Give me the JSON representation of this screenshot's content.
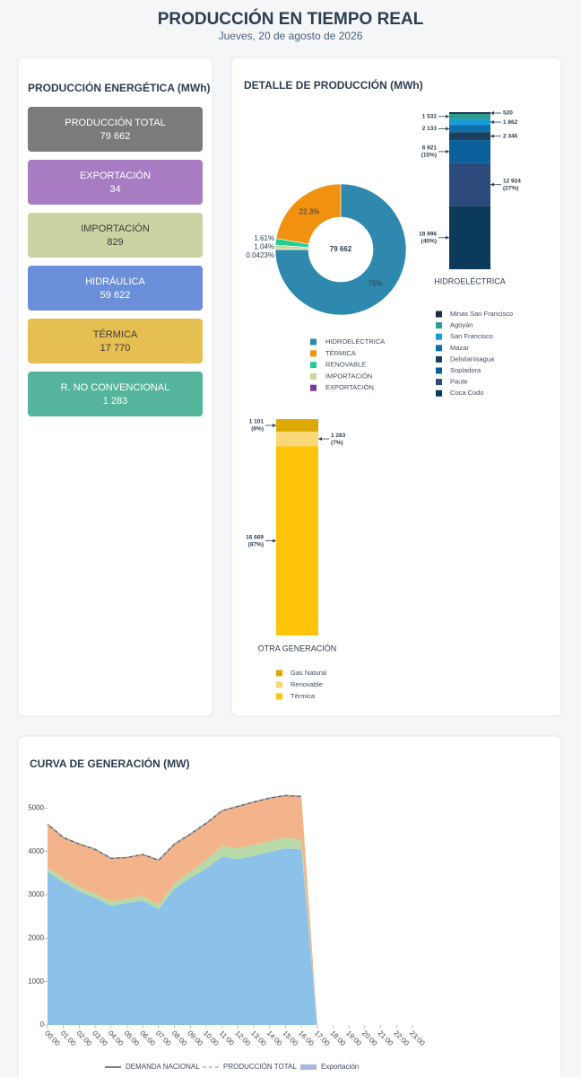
{
  "header": {
    "title": "PRODUCCIÓN EN TIEMPO REAL",
    "subtitle": "Jueves, 20 de agosto de 2026"
  },
  "summary": {
    "title": "PRODUCCIÓN ENERGÉTICA (MWh)",
    "cards": [
      {
        "label": "PRODUCCIÓN TOTAL",
        "value": "79 662",
        "color": "#7b7b7b",
        "text_color": "#ffffff"
      },
      {
        "label": "EXPORTACIÓN",
        "value": "34",
        "color": "#a87cc2",
        "text_color": "#ffffff"
      },
      {
        "label": "IMPORTACIÓN",
        "value": "829",
        "color": "#cad3a1",
        "text_color": "#3b3b3b"
      },
      {
        "label": "HIDRÁULICA",
        "value": "59 622",
        "color": "#6c8fd9",
        "text_color": "#ffffff"
      },
      {
        "label": "TÉRMICA",
        "value": "17 770",
        "color": "#e5bf52",
        "text_color": "#3b3b3b"
      },
      {
        "label": "R. NO CONVENCIONAL",
        "value": "1 283",
        "color": "#55b59c",
        "text_color": "#ffffff"
      }
    ]
  },
  "detail": {
    "title": "DETALLE DE PRODUCCIÓN (MWh)"
  },
  "chart_data": [
    {
      "type": "donut",
      "center_label": "79 662",
      "categories": [
        "HIDROELÉCTRICA",
        "TÉRMICA",
        "RENOVABLE",
        "IMPORTACIÓN",
        "EXPORTACIÓN"
      ],
      "values": [
        75,
        22.3,
        1.61,
        1.04,
        0.0423
      ],
      "value_labels": [
        "75%",
        "22.3%",
        "1.61%",
        "1.04%",
        "0.0423%"
      ],
      "colors": [
        "#2f88ad",
        "#f0910f",
        "#22cf91",
        "#cdd79c",
        "#7b3a96"
      ]
    },
    {
      "type": "stacked_bar",
      "categories": [
        "HIDROELÉCTRICA"
      ],
      "first_label_side": "right",
      "series": [
        {
          "name": "Minas San Francisco",
          "color": "#1b2b48",
          "values": [
            520
          ],
          "value_labels": [
            "520"
          ]
        },
        {
          "name": "Agoyán",
          "color": "#2a9d8f",
          "values": [
            1532
          ],
          "value_labels": [
            "1 532"
          ]
        },
        {
          "name": "San Francisco",
          "color": "#1b9bd6",
          "values": [
            1862
          ],
          "value_labels": [
            "1 862"
          ]
        },
        {
          "name": "Mazar",
          "color": "#0f6eab",
          "values": [
            2133
          ],
          "value_labels": [
            "2 133"
          ]
        },
        {
          "name": "Delsitanisagua",
          "color": "#1d3f5e",
          "values": [
            2346
          ],
          "value_labels": [
            "2 346"
          ]
        },
        {
          "name": "Sopladora",
          "color": "#0a609a",
          "values": [
            6921
          ],
          "value_labels": [
            "6 921"
          ],
          "percent_labels": [
            "(15%)"
          ]
        },
        {
          "name": "Paute",
          "color": "#2d4a7c",
          "values": [
            12924
          ],
          "value_labels": [
            "12 924"
          ],
          "percent_labels": [
            "(27%)"
          ]
        },
        {
          "name": "Coca Codo",
          "color": "#0b3a5a",
          "values": [
            18996
          ],
          "value_labels": [
            "18 996"
          ],
          "percent_labels": [
            "(40%)"
          ]
        }
      ]
    },
    {
      "type": "stacked_bar",
      "categories": [
        "OTRA GENERACIÓN"
      ],
      "first_label_side": "left",
      "series": [
        {
          "name": "Gas Natural",
          "color": "#dea805",
          "values": [
            1101
          ],
          "value_labels": [
            "1 101"
          ],
          "percent_labels": [
            "(6%)"
          ]
        },
        {
          "name": "Renovable",
          "color": "#f8d877",
          "values": [
            1283
          ],
          "value_labels": [
            "1 283"
          ],
          "percent_labels": [
            "(7%)"
          ]
        },
        {
          "name": "Térmica",
          "color": "#ffc30a",
          "values": [
            16669
          ],
          "value_labels": [
            "16 669"
          ],
          "percent_labels": [
            "(87%)"
          ]
        }
      ]
    },
    {
      "type": "area",
      "title": "CURVA DE GENERACIÓN (MW)",
      "categories": [
        "00:00",
        "01:00",
        "02:00",
        "03:00",
        "04:00",
        "05:00",
        "06:00",
        "07:00",
        "08:00",
        "09:00",
        "10:00",
        "11:00",
        "12:00",
        "13:00",
        "14:00",
        "15:00",
        "16:00",
        "17:00",
        "18:00",
        "19:00",
        "20:00",
        "21:00",
        "22:00",
        "23:00"
      ],
      "ylim": [
        0,
        5400
      ],
      "yticks": [
        0,
        1000,
        2000,
        3000,
        4000,
        5000
      ],
      "series": [
        {
          "name": "DEMANDA NACIONAL",
          "kind": "line",
          "color": "#555555",
          "values": [
            4630,
            4320,
            4170,
            4050,
            3840,
            3860,
            3930,
            3800,
            4170,
            4400,
            4650,
            4940,
            5040,
            5140,
            5230,
            5290,
            5270,
            null,
            null,
            null,
            null,
            null,
            null,
            null
          ]
        },
        {
          "name": "PRODUCCIÓN TOTAL",
          "kind": "dashed",
          "color": "#b5b5b5",
          "values": [
            4630,
            4320,
            4170,
            4050,
            3840,
            3860,
            3930,
            3800,
            4170,
            4400,
            4650,
            4940,
            5040,
            5140,
            5230,
            5290,
            5270,
            null,
            null,
            null,
            null,
            null,
            null,
            null
          ]
        },
        {
          "kind": "area",
          "color": "#86bee9",
          "values": [
            3530,
            3290,
            3080,
            2930,
            2750,
            2810,
            2870,
            2670,
            3140,
            3390,
            3600,
            3880,
            3820,
            3900,
            3990,
            4070,
            4050,
            0,
            null,
            null,
            null,
            null,
            null,
            null
          ]
        },
        {
          "kind": "area",
          "color": "#b5d7a3",
          "values": [
            100,
            100,
            100,
            100,
            100,
            100,
            100,
            100,
            120,
            150,
            200,
            250,
            250,
            250,
            250,
            250,
            220,
            0,
            null,
            null,
            null,
            null,
            null,
            null
          ]
        },
        {
          "kind": "area",
          "color": "#f2b086",
          "values": [
            1000,
            930,
            990,
            1020,
            990,
            950,
            960,
            1030,
            910,
            860,
            850,
            810,
            970,
            990,
            990,
            970,
            1000,
            0,
            null,
            null,
            null,
            null,
            null,
            null
          ]
        },
        {
          "name": "Exportación",
          "kind": "area",
          "color": "#a9b8e0",
          "values": [
            0,
            0,
            0,
            0,
            0,
            0,
            0,
            0,
            0,
            0,
            0,
            0,
            0,
            0,
            0,
            0,
            0,
            0,
            null,
            null,
            null,
            null,
            null,
            null
          ]
        }
      ]
    }
  ]
}
